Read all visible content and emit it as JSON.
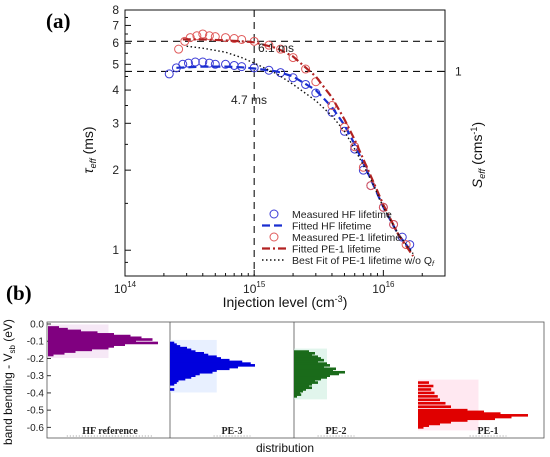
{
  "panel_a": {
    "label": "(a)",
    "xlabel": "Injection level (cm",
    "xlabel_sup": "-3",
    "xlabel_close": ")",
    "ylabel_left_main": "τ",
    "ylabel_left_sub": "eff",
    "ylabel_left_unit": " (ms)",
    "ylabel_right_main": "S",
    "ylabel_right_sub": "eff",
    "ylabel_right_unit": " (cms",
    "ylabel_right_sup": "-1",
    "ylabel_right_close": ")",
    "x_tick_labels": [
      {
        "base": "10",
        "exp": "14"
      },
      {
        "base": "10",
        "exp": "15"
      },
      {
        "base": "10",
        "exp": "16"
      }
    ],
    "y_tick_labels": [
      "1",
      "2",
      "3",
      "4",
      "5",
      "6",
      "7",
      "8"
    ],
    "right_tick_label": "1",
    "annotations": [
      "6.1 ms",
      "4.7 ms"
    ],
    "legend": [
      {
        "label": "Measured HF lifetime",
        "style": "circle",
        "color": "#3b3bd6"
      },
      {
        "label": "Fitted HF lifetime",
        "style": "dash",
        "color": "#1a2fd0"
      },
      {
        "label": "Measured PE-1 lifetime",
        "style": "circle",
        "color": "#e05a5a"
      },
      {
        "label": "Fitted PE-1 lifetime",
        "style": "dashdot",
        "color": "#b22222"
      },
      {
        "label": "Best Fit of PE-1 lifetime w/o Q",
        "sub": "f",
        "style": "dot",
        "color": "#111111"
      }
    ]
  },
  "panel_b": {
    "label": "(b)",
    "ylabel": "band bending - V",
    "ylabel_sub": "sb",
    "ylabel_unit": " (eV)",
    "xlabel": "distribution",
    "y_tick_labels": [
      "0.0",
      "-0.1",
      "-0.2",
      "-0.3",
      "-0.4",
      "-0.5",
      "-0.6"
    ],
    "sample_labels": [
      "HF reference",
      "PE-3",
      "PE-2",
      "PE-1"
    ]
  },
  "chart_data": [
    {
      "type": "scatter",
      "title": "",
      "xlabel": "Injection level (cm-3)",
      "ylabel": "τeff (ms)",
      "ylabel_right": "Seff (cms-1)",
      "x_scale": "log",
      "y_scale": "log",
      "xlim": [
        100000000000000.0,
        3e+16
      ],
      "ylim": [
        0.8,
        8
      ],
      "grid": false,
      "legend_position": "bottom-right",
      "reference_lines": {
        "horizontal": [
          6.1,
          4.7
        ],
        "vertical": [
          1000000000000000.0
        ]
      },
      "series": [
        {
          "name": "Measured HF lifetime",
          "marker": "circle",
          "color": "#3b3bd6",
          "x": [
            220000000000000.0,
            250000000000000.0,
            280000000000000.0,
            310000000000000.0,
            350000000000000.0,
            400000000000000.0,
            450000000000000.0,
            500000000000000.0,
            600000000000000.0,
            700000000000000.0,
            800000000000000.0,
            1000000000000000.0,
            1300000000000000.0,
            1600000000000000.0,
            2000000000000000.0,
            2500000000000000.0,
            3000000000000000.0,
            4000000000000000.0,
            5000000000000000.0,
            6000000000000000.0,
            7000000000000000.0,
            8000000000000000.0,
            1e+16,
            1.2e+16,
            1.4e+16,
            1.6e+16
          ],
          "y": [
            4.6,
            4.85,
            5.0,
            5.05,
            5.1,
            5.1,
            5.05,
            5.0,
            5.0,
            4.95,
            4.9,
            4.85,
            4.75,
            4.65,
            4.45,
            4.2,
            3.9,
            3.3,
            2.8,
            2.4,
            2.0,
            1.75,
            1.45,
            1.25,
            1.12,
            1.05
          ]
        },
        {
          "name": "Fitted HF lifetime",
          "style": "dash",
          "color": "#1a2fd0",
          "x": [
            250000000000000.0,
            400000000000000.0,
            600000000000000.0,
            800000000000000.0,
            1000000000000000.0,
            1500000000000000.0,
            2000000000000000.0,
            3000000000000000.0,
            4000000000000000.0,
            5000000000000000.0,
            6000000000000000.0,
            8000000000000000.0,
            1e+16,
            1.3e+16,
            1.7e+16
          ],
          "y": [
            4.85,
            4.9,
            4.9,
            4.87,
            4.82,
            4.7,
            4.5,
            4.0,
            3.45,
            2.95,
            2.5,
            1.85,
            1.45,
            1.15,
            0.97
          ]
        },
        {
          "name": "Measured PE-1 lifetime",
          "marker": "circle",
          "color": "#e05a5a",
          "x": [
            260000000000000.0,
            290000000000000.0,
            320000000000000.0,
            360000000000000.0,
            400000000000000.0,
            450000000000000.0,
            500000000000000.0,
            600000000000000.0,
            700000000000000.0,
            800000000000000.0,
            1000000000000000.0,
            1300000000000000.0,
            1600000000000000.0,
            2000000000000000.0,
            2500000000000000.0,
            3000000000000000.0,
            4000000000000000.0,
            5000000000000000.0,
            6000000000000000.0,
            7000000000000000.0,
            8000000000000000.0,
            1e+16,
            1.2e+16,
            1.5e+16
          ],
          "y": [
            5.7,
            6.1,
            6.3,
            6.4,
            6.5,
            6.4,
            6.35,
            6.3,
            6.25,
            6.2,
            6.1,
            5.9,
            5.7,
            5.3,
            4.8,
            4.3,
            3.5,
            2.9,
            2.45,
            2.05,
            1.75,
            1.45,
            1.25,
            1.05
          ]
        },
        {
          "name": "Fitted PE-1 lifetime",
          "style": "dashdot",
          "color": "#b22222",
          "x": [
            280000000000000.0,
            400000000000000.0,
            600000000000000.0,
            800000000000000.0,
            1000000000000000.0,
            1500000000000000.0,
            2000000000000000.0,
            3000000000000000.0,
            4000000000000000.0,
            5000000000000000.0,
            6000000000000000.0,
            8000000000000000.0,
            1e+16,
            1.3e+16,
            1.7e+16
          ],
          "y": [
            6.2,
            6.2,
            6.15,
            6.1,
            6.05,
            5.75,
            5.35,
            4.5,
            3.75,
            3.1,
            2.6,
            1.9,
            1.48,
            1.15,
            0.95
          ]
        },
        {
          "name": "Best Fit of PE-1 lifetime w/o Qf",
          "style": "dot",
          "color": "#111111",
          "x": [
            300000000000000.0,
            400000000000000.0,
            600000000000000.0,
            800000000000000.0,
            1000000000000000.0,
            1500000000000000.0,
            2000000000000000.0,
            3000000000000000.0,
            4000000000000000.0,
            5000000000000000.0,
            6000000000000000.0,
            8000000000000000.0,
            1e+16,
            1.3e+16,
            1.7e+16
          ],
          "y": [
            5.85,
            5.75,
            5.55,
            5.3,
            5.05,
            4.6,
            4.2,
            3.65,
            3.2,
            2.8,
            2.4,
            1.85,
            1.45,
            1.15,
            0.97
          ]
        }
      ]
    },
    {
      "type": "bar",
      "orientation": "horizontal",
      "title": "",
      "xlabel": "distribution",
      "ylabel": "band bending - Vsb (eV)",
      "ylim": [
        0.0,
        -0.65
      ],
      "series": [
        {
          "name": "HF reference",
          "color": "#800080",
          "y": [
            -0.02,
            -0.03,
            -0.04,
            -0.05,
            -0.06,
            -0.07,
            -0.08,
            -0.09,
            -0.1,
            -0.11,
            -0.12,
            -0.13,
            -0.14,
            -0.15,
            -0.16,
            -0.17,
            -0.18
          ],
          "values": [
            10,
            18,
            30,
            45,
            60,
            75,
            85,
            95,
            80,
            100,
            70,
            60,
            55,
            40,
            25,
            15,
            5
          ]
        },
        {
          "name": "PE-3",
          "color": "#0000dd",
          "y": [
            -0.11,
            -0.12,
            -0.13,
            -0.14,
            -0.15,
            -0.16,
            -0.17,
            -0.18,
            -0.19,
            -0.2,
            -0.21,
            -0.22,
            -0.23,
            -0.24,
            -0.25,
            -0.26,
            -0.27,
            -0.28,
            -0.29,
            -0.3,
            -0.31,
            -0.32,
            -0.33,
            -0.34,
            -0.35,
            -0.38
          ],
          "values": [
            5,
            8,
            12,
            20,
            25,
            30,
            40,
            45,
            55,
            60,
            70,
            85,
            95,
            100,
            80,
            70,
            55,
            50,
            35,
            30,
            25,
            18,
            10,
            8,
            5,
            5
          ]
        },
        {
          "name": "PE-2",
          "color": "#1a6b1a",
          "y": [
            -0.16,
            -0.17,
            -0.18,
            -0.19,
            -0.2,
            -0.21,
            -0.22,
            -0.23,
            -0.24,
            -0.25,
            -0.26,
            -0.27,
            -0.28,
            -0.29,
            -0.3,
            -0.31,
            -0.32,
            -0.33,
            -0.34,
            -0.35,
            -0.36,
            -0.37,
            -0.38,
            -0.39,
            -0.4,
            -0.41,
            -0.42
          ],
          "values": [
            25,
            35,
            30,
            40,
            45,
            50,
            40,
            55,
            60,
            50,
            70,
            65,
            85,
            75,
            60,
            55,
            45,
            35,
            40,
            30,
            25,
            30,
            20,
            15,
            10,
            12,
            5
          ]
        },
        {
          "name": "PE-1",
          "color": "#e00000",
          "y": [
            -0.34,
            -0.36,
            -0.38,
            -0.4,
            -0.42,
            -0.44,
            -0.46,
            -0.48,
            -0.5,
            -0.51,
            -0.52,
            -0.53,
            -0.54,
            -0.55,
            -0.56,
            -0.57,
            -0.58,
            -0.59,
            -0.6
          ],
          "values": [
            10,
            14,
            12,
            15,
            18,
            20,
            25,
            30,
            45,
            60,
            75,
            100,
            85,
            70,
            45,
            30,
            20,
            10,
            5
          ]
        }
      ]
    }
  ]
}
